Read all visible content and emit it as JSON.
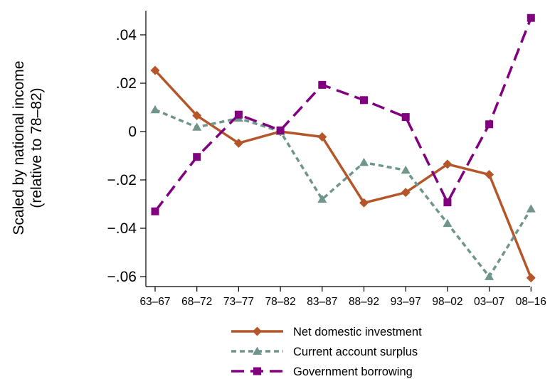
{
  "chart_data": {
    "type": "line",
    "ylabel_line1": "Scaled by national income",
    "ylabel_line2": "(relative to 78–82)",
    "categories": [
      "63–67",
      "68–72",
      "73–77",
      "78–82",
      "83–87",
      "88–92",
      "93–97",
      "98–02",
      "03–07",
      "08–16"
    ],
    "yticks": [
      ".04",
      ".02",
      "0",
      "−.02",
      "−.04",
      "−.06"
    ],
    "ytick_values": [
      0.04,
      0.02,
      0,
      -0.02,
      -0.04,
      -0.06
    ],
    "ylim": [
      -0.064,
      0.05
    ],
    "grid": false,
    "legend_position": "bottom",
    "series": [
      {
        "name": "Net domestic investment",
        "color": "#b5562a",
        "marker": "diamond",
        "dash": "solid",
        "values": [
          0.0253,
          0.0066,
          -0.0048,
          0.0,
          -0.0022,
          -0.0295,
          -0.0252,
          -0.0135,
          -0.0178,
          -0.0605
        ]
      },
      {
        "name": "Current account surplus",
        "color": "#6f958c",
        "marker": "triangle",
        "dash": "short",
        "values": [
          0.009,
          0.0018,
          0.0055,
          0.0,
          -0.028,
          -0.0128,
          -0.016,
          -0.038,
          -0.06,
          -0.032
        ]
      },
      {
        "name": "Government borrowing",
        "color": "#800080",
        "marker": "square",
        "dash": "long",
        "values": [
          -0.033,
          -0.0105,
          0.007,
          0.0005,
          0.0193,
          0.013,
          0.006,
          -0.0293,
          0.003,
          0.047
        ]
      }
    ]
  }
}
